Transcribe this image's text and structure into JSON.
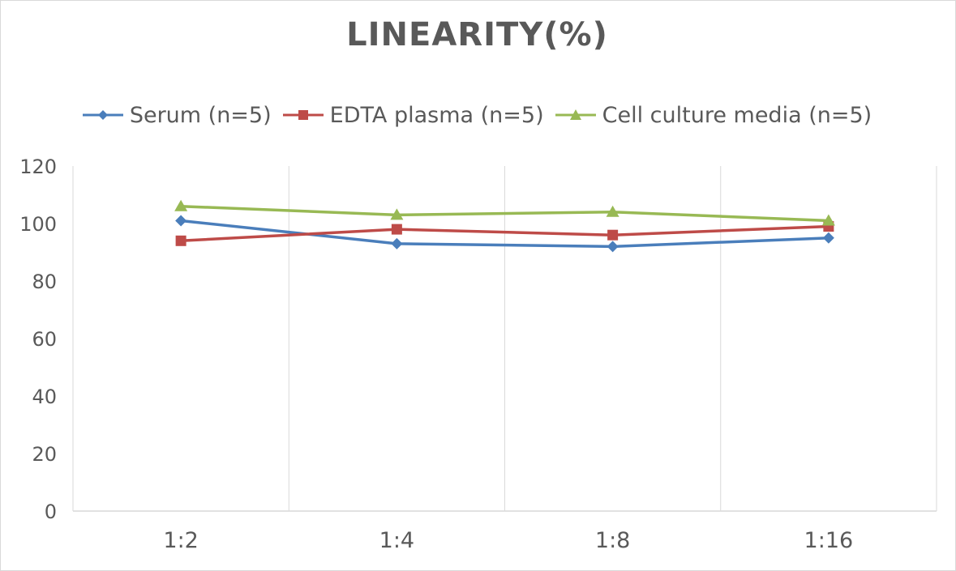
{
  "chart_data": {
    "type": "line",
    "title": "LINEARITY(%)",
    "categories": [
      "1:2",
      "1:4",
      "1:8",
      "1:16"
    ],
    "ylim": [
      0,
      120
    ],
    "yticks": [
      0,
      20,
      40,
      60,
      80,
      100,
      120
    ],
    "grid": "vertical",
    "legend_position": "top",
    "series": [
      {
        "name": "Serum (n=5)",
        "color": "#4a7ebb",
        "marker": "diamond",
        "values": [
          101,
          93,
          92,
          95
        ]
      },
      {
        "name": "EDTA plasma (n=5)",
        "color": "#be4b48",
        "marker": "square",
        "values": [
          94,
          98,
          96,
          99
        ]
      },
      {
        "name": "Cell culture media (n=5)",
        "color": "#98b954",
        "marker": "triangle",
        "values": [
          106,
          103,
          104,
          101
        ]
      }
    ]
  }
}
